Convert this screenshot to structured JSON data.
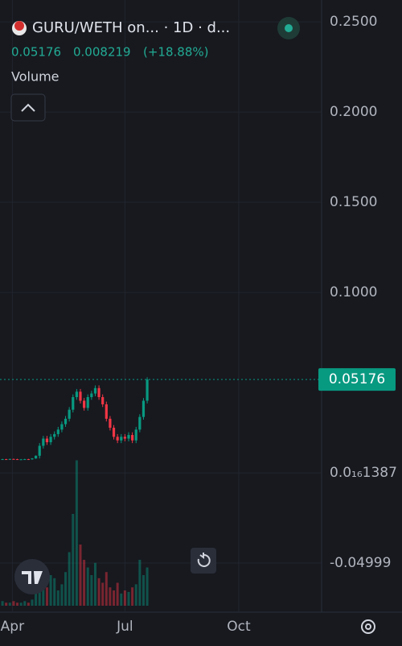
{
  "chart_data": {
    "type": "candlestick",
    "title": "GURU/WETH on... · 1D · d...",
    "last_price": 0.05176,
    "change": 0.008219,
    "change_percent": {
      "value": 18.88,
      "label": "(+18.88%)"
    },
    "volume_label": "Volume",
    "up_color": "#089981",
    "down_color": "#f23645",
    "xlim": [
      -2,
      258
    ],
    "ylim": [
      -0.0772,
      0.2621
    ],
    "vlim": [
      0,
      100
    ],
    "grid": true,
    "xticks": [
      {
        "value": 8,
        "label": "Apr"
      },
      {
        "value": 99,
        "label": "Jul"
      },
      {
        "value": 191,
        "label": "Oct"
      }
    ],
    "yticks": [
      {
        "value": 0.25,
        "label": "0.2500"
      },
      {
        "value": 0.2,
        "label": "0.2000"
      },
      {
        "value": 0.15,
        "label": "0.1500"
      },
      {
        "value": 0.1,
        "label": "0.1000"
      },
      {
        "value": 1.387e-17,
        "label": "0.0₁₆1387"
      },
      -0.04999
    ],
    "x": [
      0,
      3,
      6,
      9,
      12,
      15,
      18,
      21,
      24,
      27,
      30,
      33,
      36,
      39,
      42,
      45,
      48,
      51,
      54,
      57,
      60,
      63,
      66,
      69,
      72,
      75,
      78,
      81,
      84,
      87,
      90,
      93,
      96,
      99,
      102,
      105,
      108,
      111,
      114,
      117
    ],
    "open": [
      0.0076,
      0.0076,
      0.0075,
      0.0077,
      0.0076,
      0.0074,
      0.0075,
      0.0076,
      0.0075,
      0.008,
      0.0095,
      0.015,
      0.019,
      0.017,
      0.02,
      0.0215,
      0.024,
      0.027,
      0.03,
      0.035,
      0.042,
      0.045,
      0.04,
      0.036,
      0.042,
      0.044,
      0.047,
      0.042,
      0.038,
      0.03,
      0.025,
      0.02,
      0.018,
      0.02,
      0.019,
      0.021,
      0.018,
      0.024,
      0.031,
      0.04
    ],
    "high": [
      0.0078,
      0.0078,
      0.0079,
      0.0079,
      0.0078,
      0.0077,
      0.0078,
      0.0078,
      0.0082,
      0.0097,
      0.0165,
      0.0205,
      0.0205,
      0.0215,
      0.023,
      0.0255,
      0.0285,
      0.0315,
      0.0365,
      0.0435,
      0.0465,
      0.0465,
      0.0415,
      0.0435,
      0.0455,
      0.0485,
      0.0485,
      0.0435,
      0.0395,
      0.0315,
      0.0265,
      0.0215,
      0.0215,
      0.0215,
      0.0225,
      0.0225,
      0.0255,
      0.0325,
      0.0415,
      0.053
    ],
    "low": [
      0.0074,
      0.0073,
      0.0073,
      0.0074,
      0.0072,
      0.0072,
      0.0073,
      0.0073,
      0.0073,
      0.0078,
      0.008,
      0.0135,
      0.0155,
      0.0155,
      0.0185,
      0.02,
      0.0225,
      0.0255,
      0.0285,
      0.0335,
      0.0405,
      0.0385,
      0.0345,
      0.0345,
      0.0405,
      0.0425,
      0.0405,
      0.0365,
      0.0285,
      0.0235,
      0.0185,
      0.0165,
      0.0165,
      0.0175,
      0.0175,
      0.0165,
      0.0165,
      0.0225,
      0.0295,
      0.0385
    ],
    "close": [
      0.0076,
      0.0075,
      0.0077,
      0.0076,
      0.0074,
      0.0075,
      0.0076,
      0.0075,
      0.008,
      0.0095,
      0.015,
      0.019,
      0.017,
      0.02,
      0.0215,
      0.024,
      0.027,
      0.03,
      0.035,
      0.042,
      0.045,
      0.04,
      0.036,
      0.042,
      0.044,
      0.047,
      0.042,
      0.038,
      0.03,
      0.025,
      0.02,
      0.018,
      0.02,
      0.019,
      0.021,
      0.018,
      0.024,
      0.031,
      0.04,
      0.05176
    ],
    "volume": [
      3,
      2,
      2,
      3,
      2,
      2,
      3,
      2,
      4,
      10,
      25,
      15,
      12,
      20,
      18,
      10,
      14,
      22,
      35,
      60,
      95,
      40,
      30,
      25,
      20,
      28,
      18,
      15,
      22,
      12,
      10,
      15,
      8,
      10,
      9,
      12,
      14,
      30,
      20,
      25
    ]
  }
}
